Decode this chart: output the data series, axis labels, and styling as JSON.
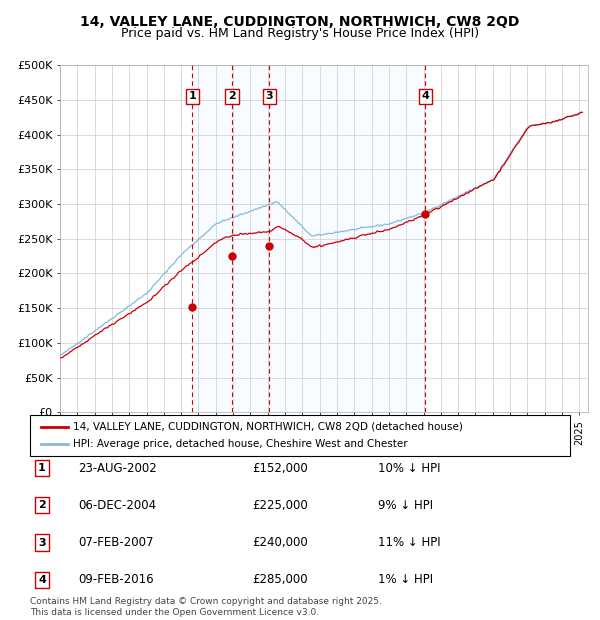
{
  "title1": "14, VALLEY LANE, CUDDINGTON, NORTHWICH, CW8 2QD",
  "title2": "Price paid vs. HM Land Registry's House Price Index (HPI)",
  "legend1": "14, VALLEY LANE, CUDDINGTON, NORTHWICH, CW8 2QD (detached house)",
  "legend2": "HPI: Average price, detached house, Cheshire West and Chester",
  "ylabel_ticks": [
    "£0",
    "£50K",
    "£100K",
    "£150K",
    "£200K",
    "£250K",
    "£300K",
    "£350K",
    "£400K",
    "£450K",
    "£500K"
  ],
  "ytick_values": [
    0,
    50000,
    100000,
    150000,
    200000,
    250000,
    300000,
    350000,
    400000,
    450000,
    500000
  ],
  "sale_dates": [
    "23-AUG-2002",
    "06-DEC-2004",
    "07-FEB-2007",
    "09-FEB-2016"
  ],
  "sale_prices": [
    152000,
    225000,
    240000,
    285000
  ],
  "table_prices": [
    "£152,000",
    "£225,000",
    "£240,000",
    "£285,000"
  ],
  "sale_hpi_diff": [
    "10% ↓ HPI",
    "9% ↓ HPI",
    "11% ↓ HPI",
    "1% ↓ HPI"
  ],
  "sale_years": [
    2002.64,
    2004.93,
    2007.1,
    2016.11
  ],
  "vline_color": "#cc0000",
  "hpi_line_color": "#85b9e0",
  "price_line_color": "#cc0000",
  "bg_shaded_color": "#ddeeff",
  "footnote": "Contains HM Land Registry data © Crown copyright and database right 2025.\nThis data is licensed under the Open Government Licence v3.0.",
  "title_fontsize": 10,
  "subtitle_fontsize": 9,
  "xlim_min": 1995,
  "xlim_max": 2025.5,
  "ylim_min": 0,
  "ylim_max": 500000
}
